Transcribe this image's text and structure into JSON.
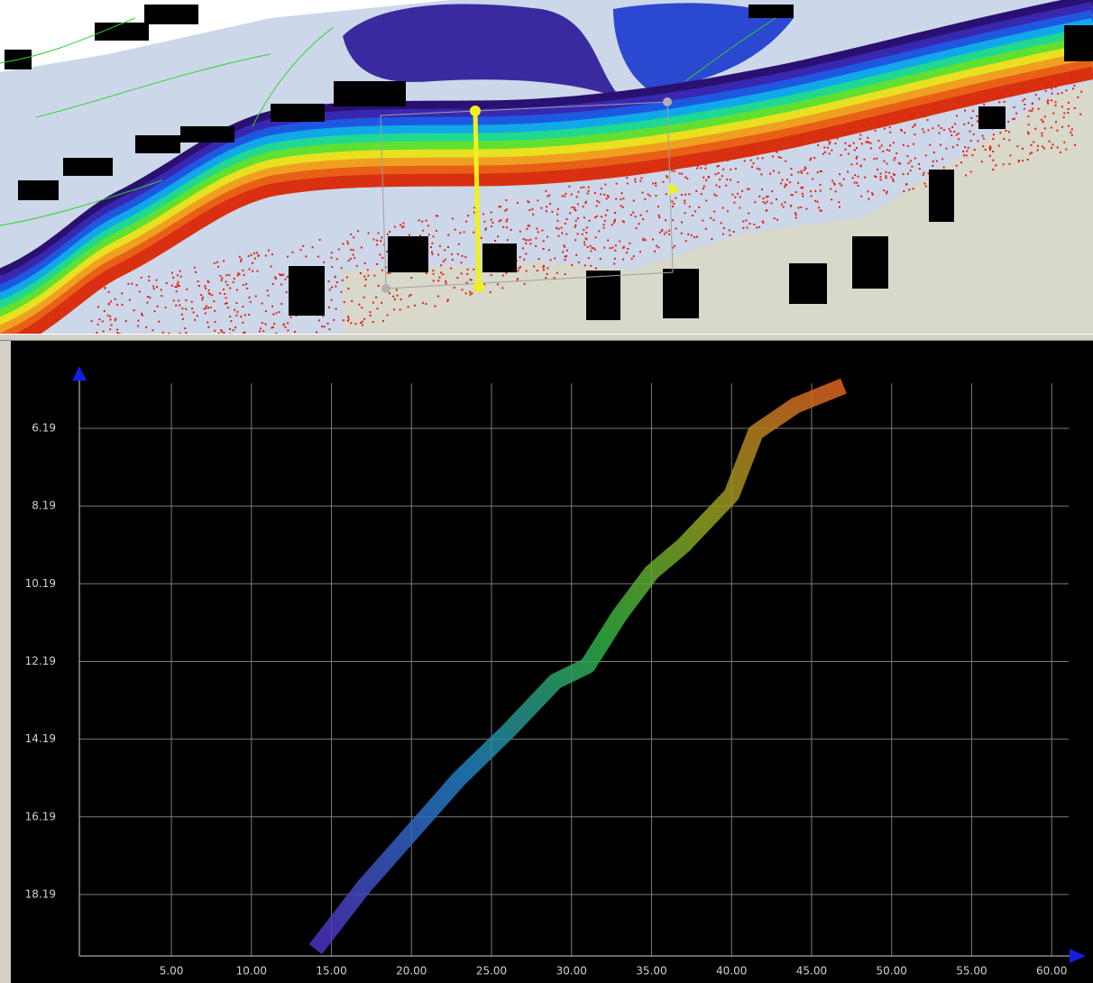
{
  "chart_data": {
    "type": "line",
    "x": [
      14.0,
      17.0,
      20.0,
      23.0,
      26.0,
      29.0,
      31.0,
      33.0,
      35.0,
      37.0,
      40.0,
      41.5,
      44.0,
      47.0
    ],
    "values": [
      19.6,
      18.0,
      16.6,
      15.2,
      14.0,
      12.7,
      12.3,
      11.0,
      9.9,
      9.2,
      7.9,
      6.3,
      5.6,
      5.1
    ],
    "xlim": [
      -0.75,
      61.06
    ],
    "ylim": [
      19.77,
      5.03
    ],
    "xticks": [
      {
        "value": 5,
        "label": "5.00"
      },
      {
        "value": 10,
        "label": "10.00"
      },
      {
        "value": 15,
        "label": "15.00"
      },
      {
        "value": 20,
        "label": "20.00"
      },
      {
        "value": 25,
        "label": "25.00"
      },
      {
        "value": 30,
        "label": "30.00"
      },
      {
        "value": 35,
        "label": "35.00"
      },
      {
        "value": 40,
        "label": "40.00"
      },
      {
        "value": 45,
        "label": "45.00"
      },
      {
        "value": 50,
        "label": "50.00"
      },
      {
        "value": 55,
        "label": "55.00"
      },
      {
        "value": 60,
        "label": "60.00"
      }
    ],
    "yticks": [
      6.19,
      8.19,
      10.19,
      12.19,
      14.19,
      16.19,
      18.19
    ],
    "grid": true
  }
}
